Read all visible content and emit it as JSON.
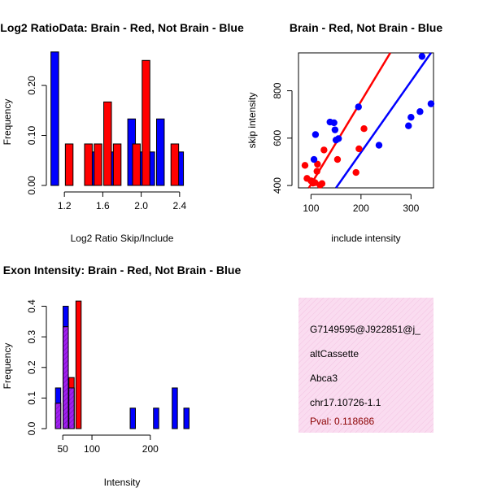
{
  "colors": {
    "brain": "#ff0000",
    "not_brain": "#0000ff",
    "overlap": "#a020f0",
    "info_bg": "#fadcf0",
    "pval": "#8b0000"
  },
  "chart_data": [
    {
      "id": "ratio-hist",
      "type": "bar",
      "title": "Log2 RatioData: Brain - Red, Not Brain - Blue",
      "xlabel": "Log2 Ratio Skip/Include",
      "ylabel": "Frequency",
      "xlim": [
        1.08,
        2.52
      ],
      "ylim": [
        0,
        0.27
      ],
      "xticks": [
        1.2,
        1.6,
        2.0,
        2.4
      ],
      "xtick_labels": [
        "1.2",
        "1.6",
        "2.0",
        "2.4"
      ],
      "yticks": [
        0.0,
        0.1,
        0.2
      ],
      "ytick_labels": [
        "0.00",
        "0.10",
        "0.20"
      ],
      "bin_width": 0.08,
      "series": [
        {
          "name": "Not Brain",
          "bins": [
            [
              1.1,
              0.267
            ],
            [
              1.5,
              0.067
            ],
            [
              1.7,
              0.067
            ],
            [
              1.9,
              0.133
            ],
            [
              2.0,
              0.067
            ],
            [
              2.1,
              0.067
            ],
            [
              2.2,
              0.133
            ],
            [
              2.4,
              0.067
            ]
          ]
        },
        {
          "name": "Brain",
          "bins": [
            [
              1.25,
              0.083
            ],
            [
              1.45,
              0.083
            ],
            [
              1.55,
              0.083
            ],
            [
              1.65,
              0.167
            ],
            [
              1.75,
              0.083
            ],
            [
              1.95,
              0.083
            ],
            [
              2.05,
              0.25
            ],
            [
              2.35,
              0.083
            ]
          ]
        }
      ]
    },
    {
      "id": "scatter",
      "type": "scatter",
      "title": "Brain - Red, Not Brain - Blue",
      "xlabel": "include intensity",
      "ylabel": "skip intensity",
      "xlim": [
        75,
        345
      ],
      "ylim": [
        390,
        960
      ],
      "xticks": [
        100,
        200,
        300
      ],
      "xtick_labels": [
        "100",
        "200",
        "300"
      ],
      "yticks": [
        400,
        600,
        800
      ],
      "ytick_labels": [
        "400",
        "600",
        "800"
      ],
      "series": [
        {
          "name": "Brain",
          "points": [
            [
              88,
              485
            ],
            [
              92,
              430
            ],
            [
              100,
              420
            ],
            [
              104,
              410
            ],
            [
              108,
              412
            ],
            [
              112,
              460
            ],
            [
              113,
              490
            ],
            [
              118,
              402
            ],
            [
              122,
              408
            ],
            [
              126,
              550
            ],
            [
              153,
              510
            ],
            [
              190,
              455
            ],
            [
              196,
              555
            ],
            [
              206,
              640
            ]
          ],
          "fit": {
            "slope": 3.5,
            "intercept": 55
          }
        },
        {
          "name": "Not Brain",
          "points": [
            [
              106,
              510
            ],
            [
              109,
              615
            ],
            [
              138,
              668
            ],
            [
              146,
              665
            ],
            [
              148,
              635
            ],
            [
              150,
              592
            ],
            [
              155,
              598
            ],
            [
              195,
              732
            ],
            [
              236,
              570
            ],
            [
              295,
              652
            ],
            [
              300,
              688
            ],
            [
              318,
              712
            ],
            [
              322,
              945
            ],
            [
              340,
              745
            ]
          ],
          "fit": {
            "slope": 3.0,
            "intercept": -60
          }
        }
      ]
    },
    {
      "id": "intensity-hist",
      "type": "bar",
      "title": "Exon Intensity: Brain - Red, Not Brain - Blue",
      "xlabel": "Intensity",
      "ylabel": "Frequency",
      "xlim": [
        33,
        270
      ],
      "ylim": [
        0,
        0.42
      ],
      "xticks": [
        50,
        100,
        200
      ],
      "xtick_labels": [
        "50",
        "100",
        "200"
      ],
      "yticks": [
        0.0,
        0.1,
        0.2,
        0.3,
        0.4
      ],
      "ytick_labels": [
        "0.0",
        "0.1",
        "0.2",
        "0.3",
        "0.4"
      ],
      "bin_width": 9,
      "series": [
        {
          "name": "Not Brain",
          "bins": [
            [
              42,
              0.133
            ],
            [
              55,
              0.4
            ],
            [
              65,
              0.133
            ],
            [
              170,
              0.067
            ],
            [
              210,
              0.067
            ],
            [
              242,
              0.133
            ],
            [
              262,
              0.067
            ]
          ]
        },
        {
          "name": "Brain",
          "bins": [
            [
              42,
              0.083
            ],
            [
              55,
              0.333
            ],
            [
              65,
              0.167
            ],
            [
              77,
              0.417
            ]
          ]
        }
      ]
    }
  ],
  "info_panel": {
    "probe_id": "G7149595@J922851@j_",
    "event_type": "altCassette",
    "gene": "Abca3",
    "location": "chr17.10726-1.1",
    "pval": "Pval: 0.118686"
  }
}
